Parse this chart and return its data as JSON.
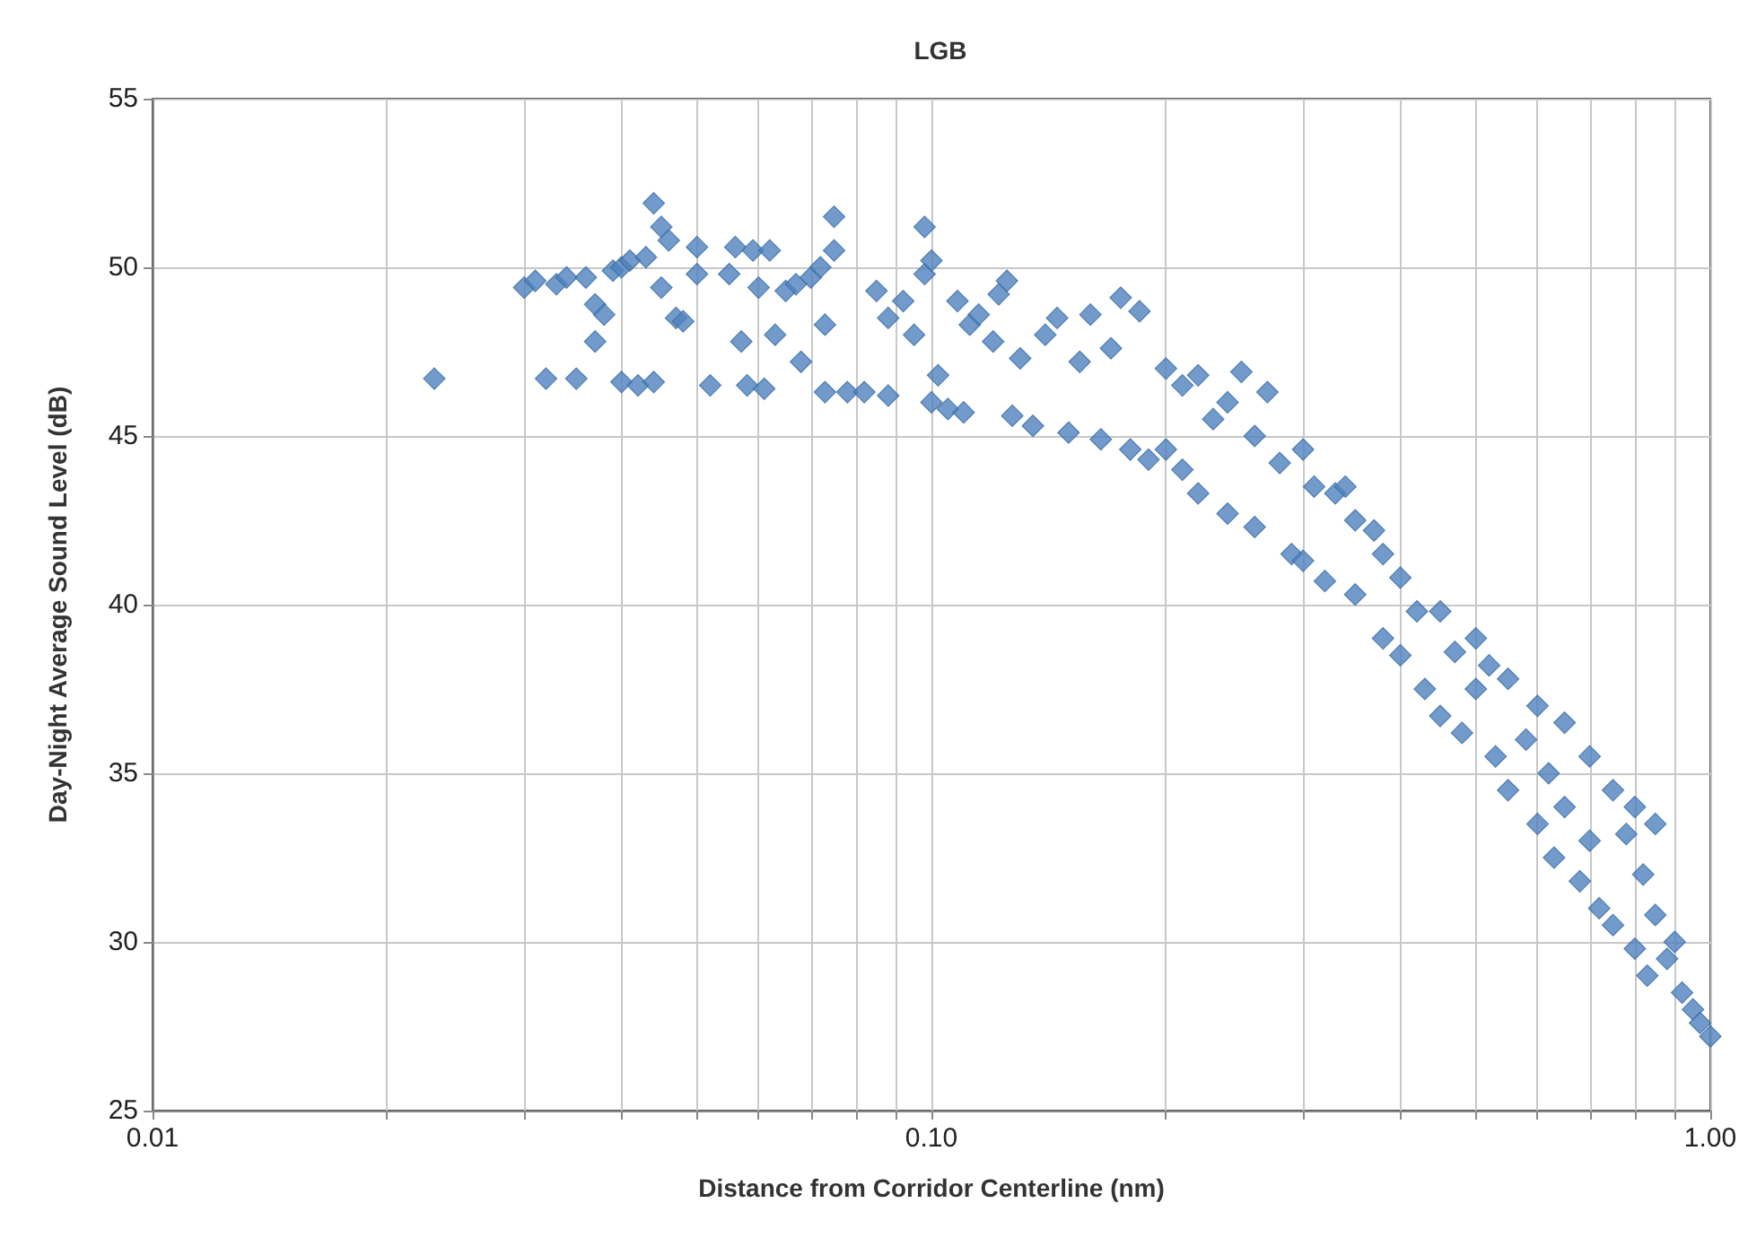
{
  "chart_data": {
    "type": "scatter",
    "title": "LGB",
    "xlabel": "Distance from Corridor Centerline (nm)",
    "ylabel": "Day-Night Average Sound Level (dB)",
    "log": "x",
    "grid": true,
    "marker": "diamond",
    "color": "#4f81bd",
    "xlim": [
      0.01,
      1
    ],
    "ylim": [
      25,
      55
    ],
    "xticks": [
      {
        "value": 0.01,
        "label": "0.01"
      },
      {
        "value": 0.02,
        "label": null
      },
      {
        "value": 0.03,
        "label": null
      },
      {
        "value": 0.04,
        "label": null
      },
      {
        "value": 0.05,
        "label": null
      },
      {
        "value": 0.06,
        "label": null
      },
      {
        "value": 0.07,
        "label": null
      },
      {
        "value": 0.08,
        "label": null
      },
      {
        "value": 0.09,
        "label": null
      },
      {
        "value": 0.1,
        "label": "0.10"
      },
      {
        "value": 0.2,
        "label": null
      },
      {
        "value": 0.3,
        "label": null
      },
      {
        "value": 0.4,
        "label": null
      },
      {
        "value": 0.5,
        "label": null
      },
      {
        "value": 0.6,
        "label": null
      },
      {
        "value": 0.7,
        "label": null
      },
      {
        "value": 0.8,
        "label": null
      },
      {
        "value": 0.9,
        "label": null
      },
      {
        "value": 1,
        "label": "1.00"
      }
    ],
    "yticks": [
      25,
      30,
      35,
      40,
      45,
      50,
      55
    ],
    "x": [
      0.023,
      0.03,
      0.031,
      0.032,
      0.033,
      0.034,
      0.035,
      0.036,
      0.037,
      0.037,
      0.038,
      0.039,
      0.04,
      0.04,
      0.041,
      0.042,
      0.043,
      0.044,
      0.044,
      0.045,
      0.045,
      0.046,
      0.047,
      0.048,
      0.05,
      0.05,
      0.052,
      0.055,
      0.056,
      0.057,
      0.058,
      0.059,
      0.06,
      0.061,
      0.062,
      0.063,
      0.065,
      0.067,
      0.068,
      0.07,
      0.072,
      0.073,
      0.073,
      0.075,
      0.075,
      0.078,
      0.082,
      0.085,
      0.088,
      0.088,
      0.092,
      0.095,
      0.098,
      0.098,
      0.1,
      0.1,
      0.102,
      0.105,
      0.108,
      0.11,
      0.112,
      0.115,
      0.12,
      0.122,
      0.125,
      0.127,
      0.13,
      0.135,
      0.14,
      0.145,
      0.15,
      0.155,
      0.16,
      0.165,
      0.17,
      0.175,
      0.18,
      0.185,
      0.19,
      0.2,
      0.2,
      0.21,
      0.21,
      0.22,
      0.22,
      0.23,
      0.24,
      0.24,
      0.25,
      0.26,
      0.26,
      0.27,
      0.28,
      0.29,
      0.3,
      0.3,
      0.31,
      0.32,
      0.33,
      0.34,
      0.35,
      0.35,
      0.37,
      0.38,
      0.38,
      0.4,
      0.4,
      0.42,
      0.43,
      0.45,
      0.45,
      0.47,
      0.48,
      0.5,
      0.5,
      0.52,
      0.53,
      0.55,
      0.55,
      0.58,
      0.6,
      0.6,
      0.62,
      0.63,
      0.65,
      0.65,
      0.68,
      0.7,
      0.7,
      0.72,
      0.75,
      0.75,
      0.78,
      0.8,
      0.8,
      0.82,
      0.83,
      0.85,
      0.85,
      0.88,
      0.9,
      0.92,
      0.95,
      0.97,
      1.0
    ],
    "values": [
      46.7,
      49.4,
      49.6,
      46.7,
      49.5,
      49.7,
      46.7,
      49.7,
      48.9,
      47.8,
      48.6,
      49.9,
      50.0,
      46.6,
      50.2,
      46.5,
      50.3,
      46.6,
      51.9,
      51.2,
      49.4,
      50.8,
      48.5,
      48.4,
      50.6,
      49.8,
      46.5,
      49.8,
      50.6,
      47.8,
      46.5,
      50.5,
      49.4,
      46.4,
      50.5,
      48.0,
      49.3,
      49.5,
      47.2,
      49.7,
      50.0,
      48.3,
      46.3,
      51.5,
      50.5,
      46.3,
      46.3,
      49.3,
      46.2,
      48.5,
      49.0,
      48.0,
      51.2,
      49.8,
      50.2,
      46.0,
      46.8,
      45.8,
      49.0,
      45.7,
      48.3,
      48.6,
      47.8,
      49.2,
      49.6,
      45.6,
      47.3,
      45.3,
      48.0,
      48.5,
      45.1,
      47.2,
      48.6,
      44.9,
      47.6,
      49.1,
      44.6,
      48.7,
      44.3,
      47.0,
      44.6,
      46.5,
      44.0,
      46.8,
      43.3,
      45.5,
      46.0,
      42.7,
      46.9,
      45.0,
      42.3,
      46.3,
      44.2,
      41.5,
      44.6,
      41.3,
      43.5,
      40.7,
      43.3,
      43.5,
      40.3,
      42.5,
      42.2,
      39.0,
      41.5,
      40.8,
      38.5,
      39.8,
      37.5,
      39.8,
      36.7,
      38.6,
      36.2,
      39.0,
      37.5,
      38.2,
      35.5,
      37.8,
      34.5,
      36.0,
      37.0,
      33.5,
      35.0,
      32.5,
      36.5,
      34.0,
      31.8,
      35.5,
      33.0,
      31.0,
      34.5,
      30.5,
      33.2,
      34.0,
      29.8,
      32.0,
      29.0,
      33.5,
      30.8,
      29.5,
      30.0,
      28.5,
      28.0,
      27.6,
      27.2
    ]
  }
}
